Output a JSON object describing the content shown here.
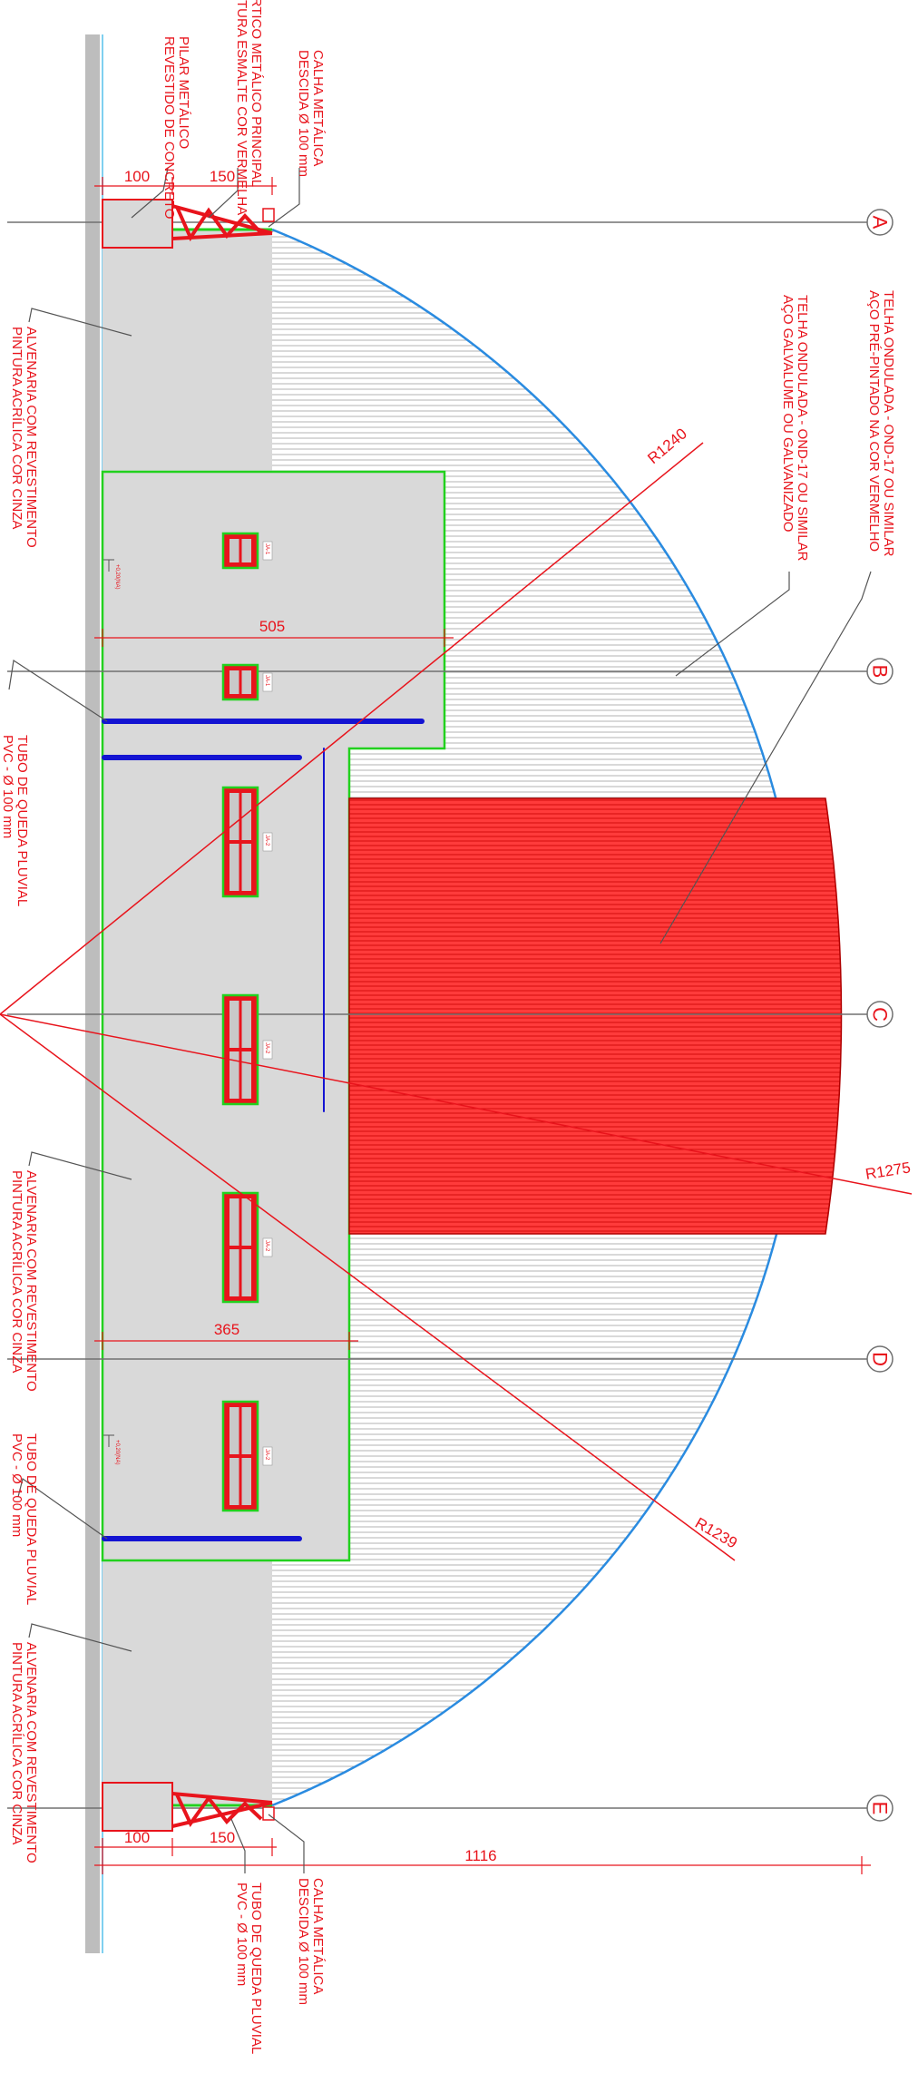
{
  "drawing": {
    "axes": [
      "A",
      "B",
      "C",
      "D",
      "E"
    ],
    "dimensions": {
      "top_pilar": "100",
      "top_gutter": "150",
      "span_upper": "505",
      "span_lower": "365",
      "bottom_pilar": "100",
      "bottom_gutter": "150",
      "overall": "1116"
    },
    "radii": {
      "r1": "R1240",
      "r2": "R1275",
      "r3": "R1239"
    },
    "window_tags": [
      "JA-1",
      "JA-1",
      "JA-2",
      "JA-2",
      "JA-2",
      "JA-2"
    ],
    "level_marks": [
      "+0,20(NA)",
      "+0,20(NA)"
    ],
    "labels": {
      "top_concrete": [
        "PILAR METÁLICO",
        "REVESTIDO DE CONCRETO"
      ],
      "top_truss": [
        "PÓRTICO METÁLICO PRINCIPAL",
        "PINTURA ESMALTE COR VERMELHA"
      ],
      "top_downpipe": [
        "CALHA METÁLICA",
        "DESCIDA Ø 100 mm"
      ],
      "wall_upper": [
        "ALVENARIA COM REVESTIMENTO",
        "PINTURA ACRÍLICA COR CINZA"
      ],
      "pipe_upper": [
        "TUBO DE QUEDA PLUVIAL",
        "PVC - Ø 100 mm"
      ],
      "wall_middle": [
        "ALVENARIA COM REVESTIMENTO",
        "PINTURA ACRÍLICA COR CINZA"
      ],
      "pipe_lower": [
        "TUBO DE QUEDA PLUVIAL",
        "PVC - Ø 100 mm"
      ],
      "wall_lower": [
        "ALVENARIA COM REVESTIMENTO",
        "PINTURA ACRÍLICA COR CINZA"
      ],
      "bottom_downpipe": [
        "CALHA METÁLICA",
        "DESCIDA Ø 100 mm"
      ],
      "bottom_pipe": [
        "TUBO DE QUEDA PLUVIAL",
        "PVC - Ø 100 mm"
      ],
      "roof_galv": [
        "TELHA ONDULADA - OND-17 OU SIMILAR",
        "AÇO GALVALUME OU GALVANIZADO"
      ],
      "roof_red": [
        "TELHA ONDULADA - OND-17 OU SIMILAR",
        "AÇO PRÉ-PINTADO NA COR VERMELHO"
      ]
    },
    "colors": {
      "red": "#e8141c",
      "green": "#22d11e",
      "blue": "#1414d2",
      "wall": "#d9d9d9",
      "roof_blue": "#2a8be0",
      "axis_line": "#707070"
    }
  }
}
